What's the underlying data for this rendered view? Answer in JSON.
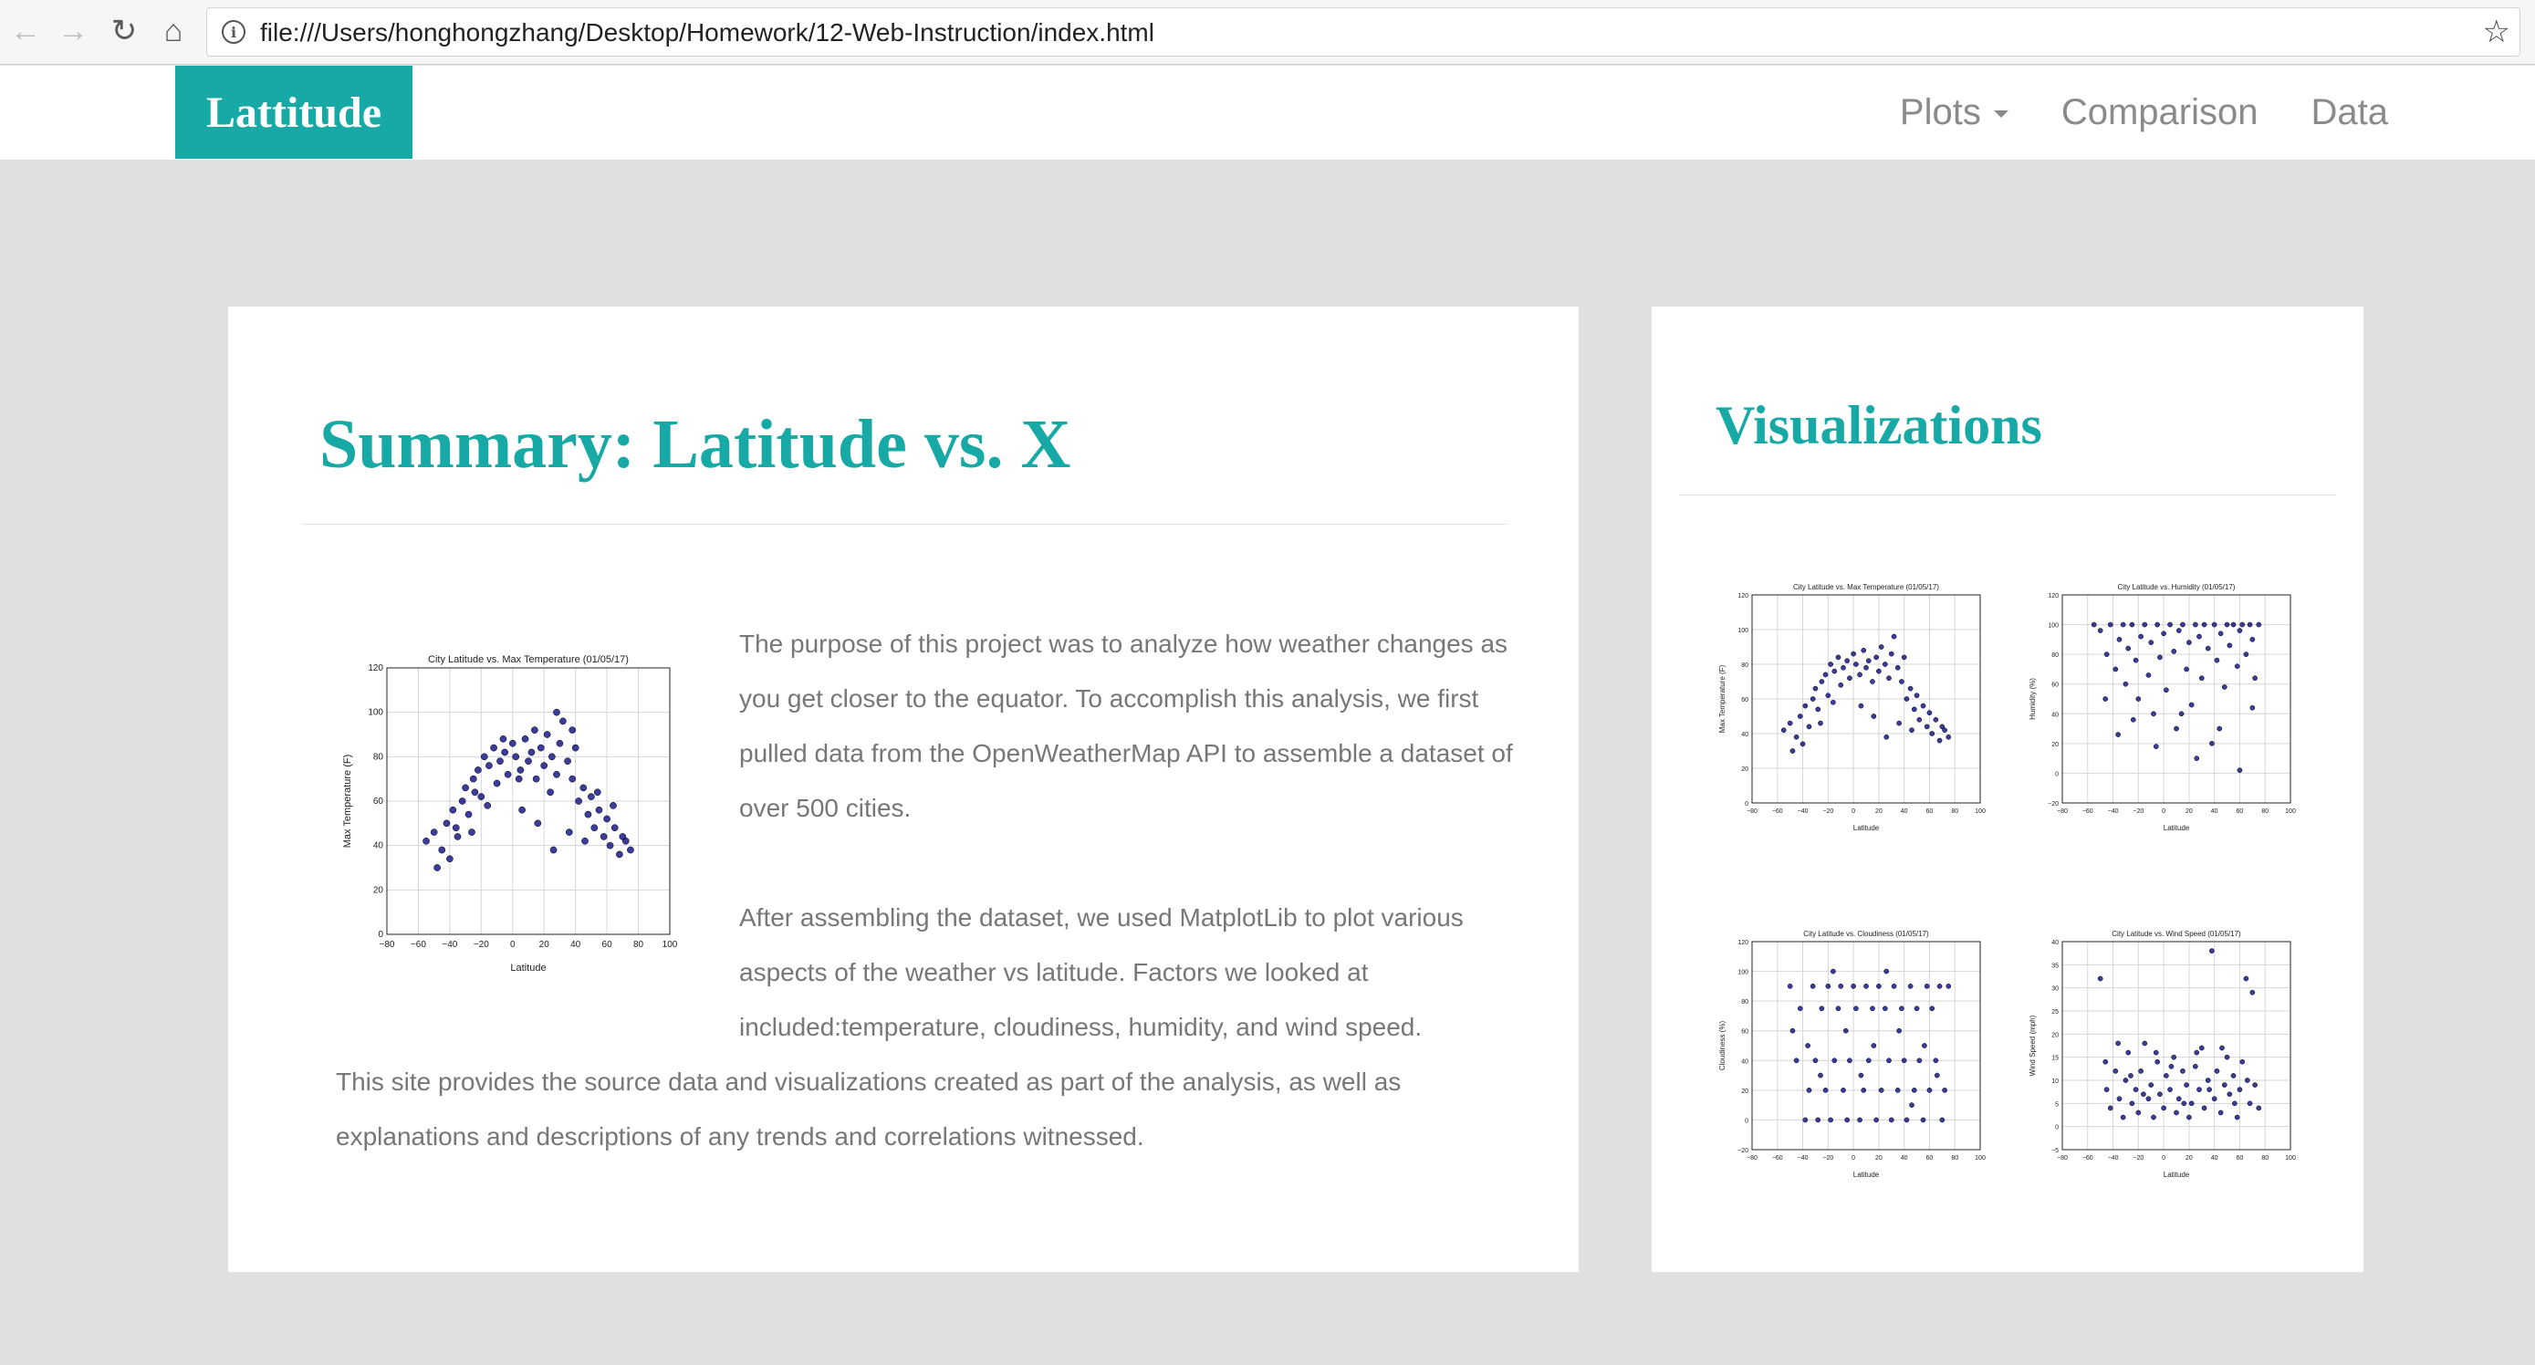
{
  "browser": {
    "url": "file:///Users/honghongzhang/Desktop/Homework/12-Web-Instruction/index.html"
  },
  "navbar": {
    "brand": "Lattitude",
    "links": [
      {
        "label": "Plots",
        "dropdown": true
      },
      {
        "label": "Comparison"
      },
      {
        "label": "Data"
      }
    ]
  },
  "summary": {
    "title": "Summary: Latitude vs. X",
    "paragraph1": "The purpose of this project was to analyze how weather changes as you get closer to the equator. To accomplish this analysis, we first pulled data from the OpenWeatherMap API to assemble a dataset of over 500 cities.",
    "paragraph2": "After assembling the dataset, we used MatplotLib to plot various aspects of the weather vs latitude. Factors we looked at included:temperature, cloudiness, humidity, and wind speed.",
    "paragraph3": "This site provides the source data and visualizations created as part of the analysis, as well as explanations and descriptions of any trends and correlations witnessed."
  },
  "visualizations": {
    "title": "Visualizations"
  },
  "colors": {
    "accent": "#17a9a5",
    "marker": "#1a1a8c",
    "text": "#777777"
  },
  "chart_data": [
    {
      "id": "temp-main",
      "type": "scatter",
      "title": "City Latitude vs. Max Temperature (01/05/17)",
      "xlabel": "Latitude",
      "ylabel": "Max Temperature (F)",
      "xlim": [
        -80,
        100
      ],
      "ylim": [
        0,
        120
      ],
      "xticks": [
        "−80",
        "−60",
        "−40",
        "−20",
        "0",
        "20",
        "40",
        "60",
        "80",
        "100"
      ],
      "yticks": [
        "0",
        "20",
        "40",
        "60",
        "80",
        "100",
        "120"
      ],
      "grid": true,
      "points": [
        [
          -55,
          42
        ],
        [
          -50,
          46
        ],
        [
          -45,
          38
        ],
        [
          -42,
          50
        ],
        [
          -38,
          56
        ],
        [
          -35,
          44
        ],
        [
          -32,
          60
        ],
        [
          -30,
          66
        ],
        [
          -28,
          54
        ],
        [
          -25,
          70
        ],
        [
          -22,
          74
        ],
        [
          -20,
          62
        ],
        [
          -18,
          80
        ],
        [
          -15,
          76
        ],
        [
          -12,
          84
        ],
        [
          -10,
          68
        ],
        [
          -8,
          78
        ],
        [
          -5,
          82
        ],
        [
          -3,
          72
        ],
        [
          0,
          86
        ],
        [
          2,
          80
        ],
        [
          5,
          74
        ],
        [
          8,
          88
        ],
        [
          10,
          78
        ],
        [
          12,
          82
        ],
        [
          15,
          70
        ],
        [
          18,
          84
        ],
        [
          20,
          76
        ],
        [
          22,
          90
        ],
        [
          25,
          80
        ],
        [
          28,
          72
        ],
        [
          30,
          86
        ],
        [
          32,
          96
        ],
        [
          35,
          78
        ],
        [
          38,
          70
        ],
        [
          40,
          84
        ],
        [
          42,
          60
        ],
        [
          45,
          66
        ],
        [
          48,
          54
        ],
        [
          50,
          62
        ],
        [
          52,
          48
        ],
        [
          55,
          56
        ],
        [
          58,
          44
        ],
        [
          60,
          52
        ],
        [
          62,
          40
        ],
        [
          65,
          48
        ],
        [
          68,
          36
        ],
        [
          70,
          44
        ],
        [
          72,
          42
        ],
        [
          75,
          38
        ],
        [
          -48,
          30
        ],
        [
          -40,
          34
        ],
        [
          -26,
          46
        ],
        [
          -16,
          58
        ],
        [
          6,
          56
        ],
        [
          16,
          50
        ],
        [
          26,
          38
        ],
        [
          36,
          46
        ],
        [
          46,
          42
        ],
        [
          -6,
          88
        ],
        [
          14,
          92
        ],
        [
          28,
          100
        ],
        [
          38,
          92
        ],
        [
          -36,
          48
        ],
        [
          -24,
          64
        ],
        [
          54,
          64
        ],
        [
          64,
          58
        ],
        [
          4,
          70
        ],
        [
          24,
          64
        ]
      ]
    },
    {
      "id": "temp-thumb",
      "type": "scatter",
      "title": "City Latitude vs. Max Temperature (01/05/17)",
      "xlabel": "Latitude",
      "ylabel": "Max Temperature (F)",
      "xlim": [
        -80,
        100
      ],
      "ylim": [
        0,
        120
      ],
      "xticks": [
        "−80",
        "−60",
        "−40",
        "−20",
        "0",
        "20",
        "40",
        "60",
        "80",
        "100"
      ],
      "yticks": [
        "0",
        "20",
        "40",
        "60",
        "80",
        "100",
        "120"
      ],
      "grid": true,
      "points": [
        [
          -55,
          42
        ],
        [
          -50,
          46
        ],
        [
          -45,
          38
        ],
        [
          -42,
          50
        ],
        [
          -38,
          56
        ],
        [
          -35,
          44
        ],
        [
          -32,
          60
        ],
        [
          -30,
          66
        ],
        [
          -28,
          54
        ],
        [
          -25,
          70
        ],
        [
          -22,
          74
        ],
        [
          -20,
          62
        ],
        [
          -18,
          80
        ],
        [
          -15,
          76
        ],
        [
          -12,
          84
        ],
        [
          -10,
          68
        ],
        [
          -8,
          78
        ],
        [
          -5,
          82
        ],
        [
          -3,
          72
        ],
        [
          0,
          86
        ],
        [
          2,
          80
        ],
        [
          5,
          74
        ],
        [
          8,
          88
        ],
        [
          10,
          78
        ],
        [
          12,
          82
        ],
        [
          15,
          70
        ],
        [
          18,
          84
        ],
        [
          20,
          76
        ],
        [
          22,
          90
        ],
        [
          25,
          80
        ],
        [
          28,
          72
        ],
        [
          30,
          86
        ],
        [
          32,
          96
        ],
        [
          35,
          78
        ],
        [
          38,
          70
        ],
        [
          40,
          84
        ],
        [
          42,
          60
        ],
        [
          45,
          66
        ],
        [
          48,
          54
        ],
        [
          50,
          62
        ],
        [
          52,
          48
        ],
        [
          55,
          56
        ],
        [
          58,
          44
        ],
        [
          60,
          52
        ],
        [
          62,
          40
        ],
        [
          65,
          48
        ],
        [
          68,
          36
        ],
        [
          70,
          44
        ],
        [
          72,
          42
        ],
        [
          75,
          38
        ],
        [
          -48,
          30
        ],
        [
          -40,
          34
        ],
        [
          -26,
          46
        ],
        [
          -16,
          58
        ],
        [
          6,
          56
        ],
        [
          16,
          50
        ],
        [
          26,
          38
        ],
        [
          36,
          46
        ],
        [
          46,
          42
        ]
      ]
    },
    {
      "id": "humidity-thumb",
      "type": "scatter",
      "title": "City Latitude vs. Humidity (01/05/17)",
      "xlabel": "Latitude",
      "ylabel": "Humidity (%)",
      "xlim": [
        -80,
        100
      ],
      "ylim": [
        -20,
        120
      ],
      "xticks": [
        "−80",
        "−60",
        "−40",
        "−20",
        "0",
        "20",
        "40",
        "60",
        "80",
        "100"
      ],
      "yticks": [
        "−20",
        "0",
        "20",
        "40",
        "60",
        "80",
        "100",
        "120"
      ],
      "grid": true,
      "points": [
        [
          -55,
          100
        ],
        [
          -50,
          96
        ],
        [
          -45,
          80
        ],
        [
          -42,
          100
        ],
        [
          -38,
          70
        ],
        [
          -35,
          90
        ],
        [
          -32,
          100
        ],
        [
          -30,
          60
        ],
        [
          -28,
          84
        ],
        [
          -25,
          100
        ],
        [
          -22,
          76
        ],
        [
          -20,
          50
        ],
        [
          -18,
          92
        ],
        [
          -15,
          100
        ],
        [
          -12,
          66
        ],
        [
          -10,
          88
        ],
        [
          -8,
          40
        ],
        [
          -5,
          100
        ],
        [
          -3,
          78
        ],
        [
          0,
          94
        ],
        [
          2,
          56
        ],
        [
          5,
          100
        ],
        [
          8,
          82
        ],
        [
          10,
          30
        ],
        [
          12,
          96
        ],
        [
          15,
          100
        ],
        [
          18,
          70
        ],
        [
          20,
          88
        ],
        [
          22,
          46
        ],
        [
          25,
          100
        ],
        [
          28,
          92
        ],
        [
          30,
          64
        ],
        [
          32,
          100
        ],
        [
          35,
          84
        ],
        [
          38,
          20
        ],
        [
          40,
          100
        ],
        [
          42,
          76
        ],
        [
          45,
          94
        ],
        [
          48,
          58
        ],
        [
          50,
          100
        ],
        [
          52,
          86
        ],
        [
          55,
          100
        ],
        [
          58,
          72
        ],
        [
          60,
          96
        ],
        [
          62,
          100
        ],
        [
          65,
          80
        ],
        [
          68,
          100
        ],
        [
          70,
          90
        ],
        [
          72,
          64
        ],
        [
          75,
          100
        ],
        [
          -46,
          50
        ],
        [
          -36,
          26
        ],
        [
          -24,
          36
        ],
        [
          -6,
          18
        ],
        [
          14,
          40
        ],
        [
          26,
          10
        ],
        [
          44,
          30
        ],
        [
          60,
          2
        ],
        [
          70,
          44
        ]
      ]
    },
    {
      "id": "cloudiness-thumb",
      "type": "scatter",
      "title": "City Latitude vs. Cloudiness (01/05/17)",
      "xlabel": "Latitude",
      "ylabel": "Cloudiness (%)",
      "xlim": [
        -80,
        100
      ],
      "ylim": [
        -20,
        120
      ],
      "xticks": [
        "−80",
        "−60",
        "−40",
        "−20",
        "0",
        "20",
        "40",
        "60",
        "80",
        "100"
      ],
      "yticks": [
        "−20",
        "0",
        "20",
        "40",
        "60",
        "80",
        "100",
        "120"
      ],
      "grid": true,
      "points": [
        [
          -50,
          90
        ],
        [
          -45,
          40
        ],
        [
          -42,
          75
        ],
        [
          -38,
          0
        ],
        [
          -35,
          20
        ],
        [
          -32,
          90
        ],
        [
          -30,
          40
        ],
        [
          -28,
          0
        ],
        [
          -25,
          75
        ],
        [
          -22,
          20
        ],
        [
          -20,
          90
        ],
        [
          -18,
          0
        ],
        [
          -15,
          40
        ],
        [
          -12,
          75
        ],
        [
          -10,
          90
        ],
        [
          -8,
          20
        ],
        [
          -5,
          0
        ],
        [
          -3,
          40
        ],
        [
          0,
          90
        ],
        [
          2,
          75
        ],
        [
          5,
          0
        ],
        [
          8,
          20
        ],
        [
          10,
          90
        ],
        [
          12,
          40
        ],
        [
          15,
          75
        ],
        [
          18,
          0
        ],
        [
          20,
          90
        ],
        [
          22,
          20
        ],
        [
          25,
          75
        ],
        [
          28,
          40
        ],
        [
          30,
          0
        ],
        [
          32,
          90
        ],
        [
          35,
          20
        ],
        [
          38,
          75
        ],
        [
          40,
          40
        ],
        [
          42,
          0
        ],
        [
          45,
          90
        ],
        [
          48,
          20
        ],
        [
          50,
          75
        ],
        [
          52,
          40
        ],
        [
          55,
          0
        ],
        [
          58,
          90
        ],
        [
          60,
          20
        ],
        [
          62,
          75
        ],
        [
          65,
          40
        ],
        [
          68,
          90
        ],
        [
          70,
          0
        ],
        [
          72,
          20
        ],
        [
          75,
          90
        ],
        [
          -48,
          60
        ],
        [
          -36,
          50
        ],
        [
          -26,
          30
        ],
        [
          -16,
          100
        ],
        [
          -6,
          60
        ],
        [
          6,
          30
        ],
        [
          16,
          50
        ],
        [
          26,
          100
        ],
        [
          36,
          60
        ],
        [
          46,
          10
        ],
        [
          56,
          50
        ],
        [
          66,
          30
        ]
      ]
    },
    {
      "id": "wind-thumb",
      "type": "scatter",
      "title": "City Latitude vs. Wind Speed (01/05/17)",
      "xlabel": "Latitude",
      "ylabel": "Wind Speed (mph)",
      "xlim": [
        -80,
        100
      ],
      "ylim": [
        -5,
        40
      ],
      "xticks": [
        "−80",
        "−60",
        "−40",
        "−20",
        "0",
        "20",
        "40",
        "60",
        "80",
        "100"
      ],
      "yticks": [
        "−5",
        "0",
        "5",
        "10",
        "15",
        "20",
        "25",
        "30",
        "35",
        "40"
      ],
      "grid": true,
      "points": [
        [
          -50,
          32
        ],
        [
          -45,
          8
        ],
        [
          -42,
          4
        ],
        [
          -38,
          12
        ],
        [
          -35,
          6
        ],
        [
          -32,
          2
        ],
        [
          -30,
          10
        ],
        [
          -28,
          16
        ],
        [
          -25,
          5
        ],
        [
          -22,
          8
        ],
        [
          -20,
          3
        ],
        [
          -18,
          12
        ],
        [
          -15,
          18
        ],
        [
          -12,
          6
        ],
        [
          -10,
          9
        ],
        [
          -8,
          2
        ],
        [
          -5,
          14
        ],
        [
          -3,
          7
        ],
        [
          0,
          4
        ],
        [
          2,
          11
        ],
        [
          5,
          8
        ],
        [
          8,
          15
        ],
        [
          10,
          3
        ],
        [
          12,
          6
        ],
        [
          15,
          12
        ],
        [
          18,
          9
        ],
        [
          20,
          2
        ],
        [
          22,
          5
        ],
        [
          25,
          13
        ],
        [
          28,
          8
        ],
        [
          30,
          17
        ],
        [
          32,
          4
        ],
        [
          35,
          10
        ],
        [
          38,
          38
        ],
        [
          40,
          6
        ],
        [
          42,
          12
        ],
        [
          45,
          3
        ],
        [
          48,
          9
        ],
        [
          50,
          15
        ],
        [
          52,
          7
        ],
        [
          55,
          11
        ],
        [
          58,
          2
        ],
        [
          60,
          8
        ],
        [
          62,
          14
        ],
        [
          65,
          32
        ],
        [
          68,
          5
        ],
        [
          70,
          29
        ],
        [
          72,
          9
        ],
        [
          75,
          4
        ],
        [
          -46,
          14
        ],
        [
          -36,
          18
        ],
        [
          -26,
          11
        ],
        [
          -16,
          7
        ],
        [
          -6,
          16
        ],
        [
          6,
          13
        ],
        [
          16,
          5
        ],
        [
          26,
          16
        ],
        [
          36,
          8
        ],
        [
          46,
          17
        ],
        [
          56,
          5
        ],
        [
          66,
          10
        ]
      ]
    }
  ]
}
